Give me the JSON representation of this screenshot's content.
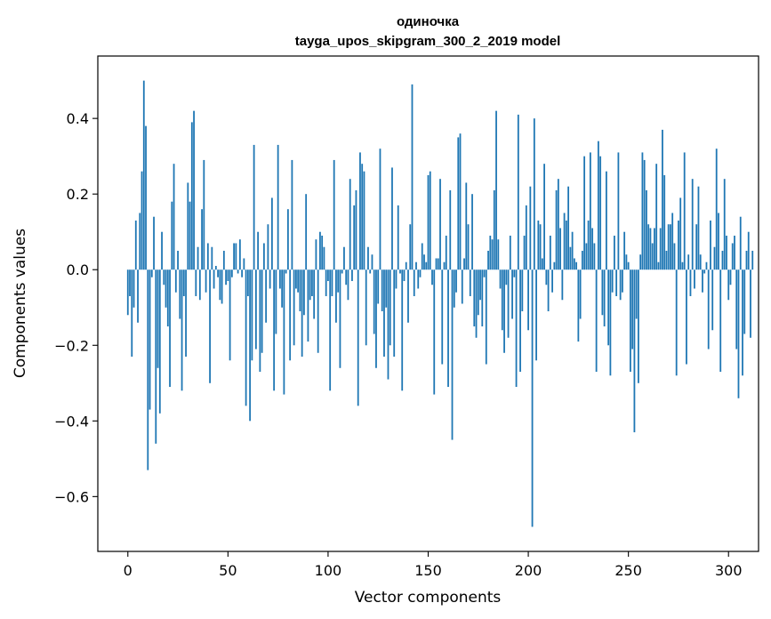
{
  "chart_data": {
    "type": "bar",
    "title": [
      "одиночка",
      "tayga_upos_skipgram_300_2_2019 model"
    ],
    "xlabel": "Vector components",
    "ylabel": "Components values",
    "xlim": [
      -15,
      315
    ],
    "ylim": [
      -0.745,
      0.565
    ],
    "xticks": [
      0,
      50,
      100,
      150,
      200,
      250,
      300
    ],
    "yticks": [
      -0.6,
      -0.4,
      -0.2,
      0.0,
      0.2,
      0.4
    ],
    "ytick_labels": [
      "−0.6",
      "−0.4",
      "−0.2",
      "0.0",
      "0.2",
      "0.4"
    ],
    "grid": false,
    "color": "#1f77b4",
    "values": [
      -0.12,
      -0.07,
      -0.23,
      -0.1,
      0.13,
      -0.14,
      0.15,
      0.26,
      0.5,
      0.38,
      -0.53,
      -0.37,
      -0.02,
      0.14,
      -0.46,
      -0.26,
      -0.38,
      0.1,
      -0.04,
      -0.1,
      -0.15,
      -0.31,
      0.18,
      0.28,
      -0.06,
      0.05,
      -0.13,
      -0.32,
      -0.07,
      -0.23,
      0.23,
      0.18,
      0.39,
      0.42,
      -0.07,
      0.06,
      -0.08,
      0.16,
      0.29,
      -0.06,
      0.07,
      -0.3,
      0.06,
      -0.05,
      0.01,
      -0.02,
      -0.08,
      -0.09,
      0.05,
      -0.04,
      -0.03,
      -0.24,
      -0.02,
      0.07,
      0.07,
      -0.01,
      0.08,
      -0.02,
      0.03,
      -0.36,
      -0.07,
      -0.4,
      -0.24,
      0.33,
      -0.21,
      0.1,
      -0.27,
      -0.22,
      0.07,
      -0.14,
      0.12,
      -0.05,
      0.19,
      -0.32,
      -0.17,
      0.33,
      -0.05,
      -0.1,
      -0.33,
      -0.01,
      0.16,
      -0.24,
      0.29,
      -0.2,
      -0.05,
      -0.06,
      -0.11,
      -0.23,
      -0.12,
      0.2,
      -0.19,
      -0.08,
      -0.07,
      -0.13,
      0.08,
      -0.22,
      0.1,
      0.09,
      0.06,
      -0.07,
      -0.03,
      -0.32,
      -0.07,
      0.29,
      -0.14,
      -0.06,
      -0.26,
      -0.01,
      0.06,
      -0.04,
      -0.08,
      0.24,
      -0.03,
      0.17,
      0.21,
      -0.36,
      0.31,
      0.28,
      0.26,
      -0.2,
      0.06,
      -0.01,
      0.04,
      -0.17,
      -0.26,
      -0.09,
      0.32,
      -0.11,
      -0.23,
      -0.1,
      -0.29,
      -0.2,
      0.27,
      -0.23,
      -0.05,
      0.17,
      -0.01,
      -0.32,
      -0.03,
      0.02,
      -0.14,
      0.12,
      0.49,
      -0.07,
      0.02,
      -0.05,
      -0.02,
      0.07,
      0.04,
      0.02,
      0.25,
      0.26,
      -0.04,
      -0.33,
      0.03,
      0.03,
      0.24,
      -0.25,
      0.02,
      0.09,
      -0.31,
      0.21,
      -0.45,
      -0.1,
      -0.06,
      0.35,
      0.36,
      -0.09,
      0.03,
      0.23,
      0.12,
      -0.07,
      0.2,
      -0.15,
      -0.18,
      -0.12,
      -0.08,
      -0.15,
      -0.02,
      -0.25,
      0.05,
      0.09,
      0.08,
      0.21,
      0.42,
      0.08,
      -0.05,
      -0.16,
      -0.22,
      -0.04,
      -0.18,
      0.09,
      -0.13,
      -0.02,
      -0.31,
      0.41,
      -0.27,
      -0.11,
      0.09,
      0.17,
      -0.16,
      0.22,
      -0.68,
      0.4,
      -0.24,
      0.13,
      0.12,
      0.03,
      0.28,
      -0.04,
      -0.11,
      0.09,
      -0.06,
      0.02,
      0.21,
      0.24,
      0.11,
      -0.08,
      0.15,
      0.13,
      0.22,
      0.06,
      0.1,
      0.03,
      0.02,
      -0.19,
      -0.13,
      0.05,
      0.3,
      0.07,
      0.13,
      0.31,
      0.11,
      0.07,
      -0.27,
      0.34,
      0.3,
      -0.12,
      -0.15,
      0.26,
      -0.2,
      -0.28,
      -0.06,
      0.09,
      -0.07,
      0.31,
      -0.08,
      -0.06,
      0.1,
      0.04,
      0.02,
      -0.27,
      -0.21,
      -0.43,
      -0.13,
      -0.3,
      0.04,
      0.31,
      0.29,
      0.21,
      0.12,
      0.11,
      0.07,
      0.11,
      0.28,
      0.02,
      0.11,
      0.37,
      0.25,
      0.05,
      0.12,
      0.12,
      0.15,
      0.07,
      -0.28,
      0.13,
      0.19,
      0.02,
      0.31,
      -0.25,
      0.04,
      -0.07,
      0.24,
      -0.05,
      0.12,
      0.22,
      0.04,
      -0.06,
      -0.01,
      0.02,
      -0.21,
      0.13,
      -0.16,
      0.06,
      0.32,
      0.15,
      -0.27,
      0.05,
      0.24,
      0.09,
      -0.08,
      -0.04,
      0.07,
      0.09,
      -0.21,
      -0.34,
      0.14,
      -0.28,
      -0.17,
      0.05,
      0.1,
      -0.18,
      0.05
    ]
  }
}
